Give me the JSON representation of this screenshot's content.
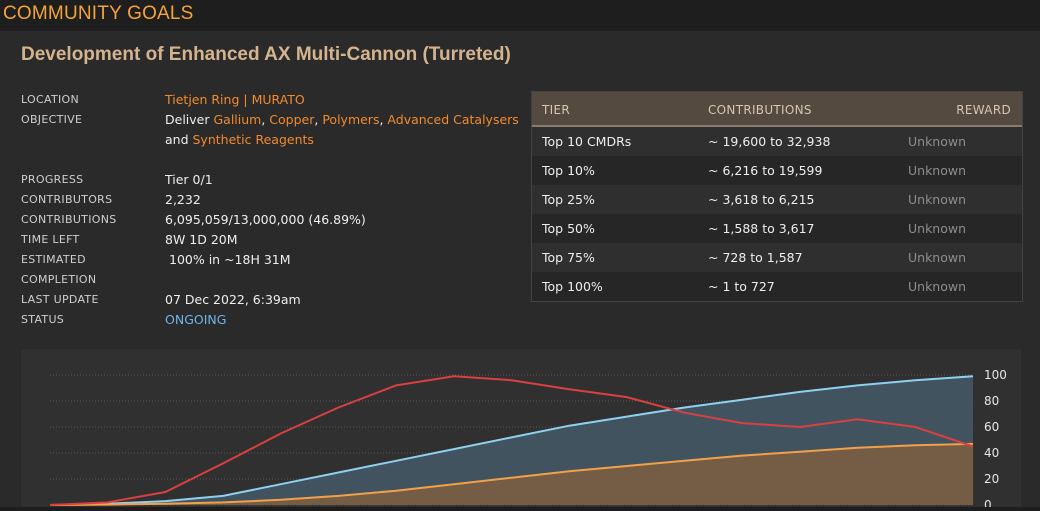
{
  "header": {
    "title": "COMMUNITY GOALS"
  },
  "goal": {
    "title": "Development of Enhanced AX Multi-Cannon (Turreted)",
    "labels": {
      "location": "LOCATION",
      "objective": "OBJECTIVE",
      "progress": "PROGRESS",
      "contributors": "CONTRIBUTORS",
      "contributions": "CONTRIBUTIONS",
      "time_left": "TIME LEFT",
      "estimated_completion": "ESTIMATED COMPLETION",
      "last_update": "LAST UPDATE",
      "status": "STATUS"
    },
    "location": {
      "station": "Tietjen Ring",
      "separator": " | ",
      "system": "MURATO"
    },
    "objective": {
      "prefix": "Deliver ",
      "items": [
        "Gallium",
        "Copper",
        "Polymers",
        "Advanced Catalysers",
        "Synthetic Reagents"
      ],
      "sep_comma": ", ",
      "sep_and": "and "
    },
    "progress": "Tier 0/1",
    "contributors": "2,232",
    "contributions": "6,095,059/13,000,000 (46.89%)",
    "time_left": "8W 1D 20M",
    "estimated_completion": "100% in ~18H 31M",
    "last_update": "07 Dec 2022, 6:39am",
    "status": "ONGOING"
  },
  "tiers": {
    "headers": {
      "tier": "TIER",
      "contributions": "CONTRIBUTIONS",
      "reward": "REWARD"
    },
    "rows": [
      {
        "tier": "Top 10 CMDRs",
        "contributions": "~ 19,600 to 32,938",
        "reward": "Unknown"
      },
      {
        "tier": "Top 10%",
        "contributions": "~ 6,216 to 19,599",
        "reward": "Unknown"
      },
      {
        "tier": "Top 25%",
        "contributions": "~ 3,618 to 6,215",
        "reward": "Unknown"
      },
      {
        "tier": "Top 50%",
        "contributions": "~ 1,588 to 3,617",
        "reward": "Unknown"
      },
      {
        "tier": "Top 75%",
        "contributions": "~ 728 to 1,587",
        "reward": "Unknown"
      },
      {
        "tier": "Top 100%",
        "contributions": "~ 1 to 727",
        "reward": "Unknown"
      }
    ]
  },
  "chart_data": {
    "type": "area",
    "x": [
      0,
      1,
      2,
      3,
      4,
      5,
      6,
      7,
      8,
      9,
      10,
      11,
      12,
      13,
      14,
      15,
      16
    ],
    "ylim": [
      0,
      100
    ],
    "yticks": [
      "100",
      "80",
      "60",
      "40",
      "20",
      "0"
    ],
    "grid": true,
    "series": [
      {
        "values": [
          0,
          1,
          3,
          7,
          16,
          25,
          34,
          43,
          52,
          61,
          68,
          75,
          81,
          87,
          92,
          96,
          99
        ],
        "color": "#8fd0f0",
        "fill": "#445865"
      },
      {
        "values": [
          0,
          0.3,
          1,
          2,
          4,
          7,
          11,
          16,
          21,
          26,
          30,
          34,
          38,
          41,
          44,
          46,
          47
        ],
        "color": "#f2a04a",
        "fill": "#7a5d42"
      },
      {
        "values": [
          0,
          2,
          10,
          32,
          55,
          75,
          92,
          99,
          96,
          89,
          83,
          71,
          63,
          60,
          66,
          60,
          45
        ],
        "color": "#d94040"
      }
    ]
  }
}
